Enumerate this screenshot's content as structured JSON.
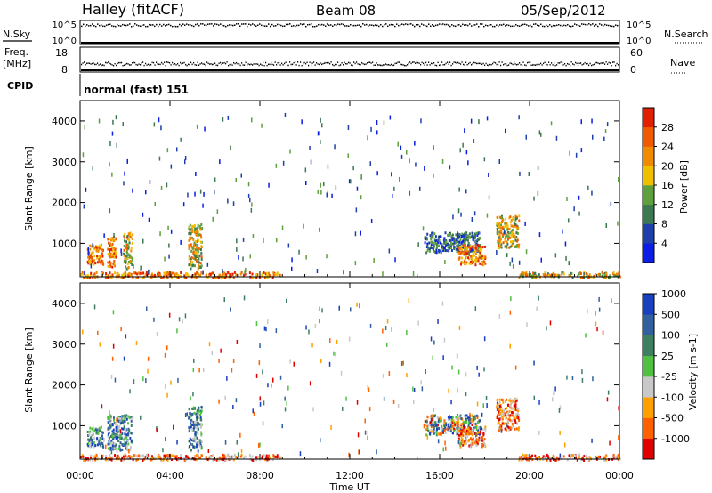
{
  "header": {
    "site": "Halley (fitACF)",
    "beam": "Beam 08",
    "date": "05/Sep/2012"
  },
  "sky_panel": {
    "left_label": "N.Sky",
    "right_label": "N.Search",
    "ticks": [
      "10^5",
      "10^0"
    ]
  },
  "freq_panel": {
    "left_label_line1": "Freq.",
    "left_label_line2": "[MHz]",
    "right_label": "Nave",
    "left_ticks": [
      "18",
      "8"
    ],
    "right_ticks": [
      "60",
      "0"
    ]
  },
  "cpid": {
    "label": "CPID",
    "value": "normal (fast) 151"
  },
  "colors": {
    "power": [
      "#0a1ee6",
      "#1e40aa",
      "#3c7850",
      "#5ea03c",
      "#f0c000",
      "#f08a00",
      "#f05a00",
      "#e02000"
    ],
    "velocity": [
      "#e00000",
      "#ff6000",
      "#ffa000",
      "#c8c8c8",
      "#50c040",
      "#3c8060",
      "#3060a0",
      "#1840c0"
    ]
  },
  "chart_data": [
    {
      "type": "heatmap",
      "title": "",
      "xlabel": "",
      "ylabel": "Slant Range [km]",
      "xlim": [
        0,
        24
      ],
      "ylim": [
        180,
        4500
      ],
      "x_ticks": [
        "00:00",
        "04:00",
        "08:00",
        "12:00",
        "16:00",
        "20:00",
        "00:00"
      ],
      "y_ticks": [
        1000,
        2000,
        3000,
        4000
      ],
      "colorbar": {
        "label": "Power [dB]",
        "ticks": [
          "4",
          "8",
          "12",
          "16",
          "20",
          "24",
          "28"
        ],
        "range": [
          0,
          32
        ]
      },
      "echo_regions": [
        {
          "t_start": 0.0,
          "t_end": 8.9,
          "r_min": 180,
          "r_max": 320,
          "level": "high"
        },
        {
          "t_start": 0.3,
          "t_end": 1.0,
          "r_min": 500,
          "r_max": 1000,
          "level": "high"
        },
        {
          "t_start": 1.2,
          "t_end": 1.6,
          "r_min": 400,
          "r_max": 1200,
          "level": "high"
        },
        {
          "t_start": 1.9,
          "t_end": 2.3,
          "r_min": 400,
          "r_max": 1300,
          "level": "mid"
        },
        {
          "t_start": 4.8,
          "t_end": 5.4,
          "r_min": 400,
          "r_max": 1500,
          "level": "mid"
        },
        {
          "t_start": 15.3,
          "t_end": 17.8,
          "r_min": 800,
          "r_max": 1300,
          "level": "low"
        },
        {
          "t_start": 16.8,
          "t_end": 18.0,
          "r_min": 500,
          "r_max": 1000,
          "level": "high"
        },
        {
          "t_start": 18.5,
          "t_end": 19.5,
          "r_min": 900,
          "r_max": 1700,
          "level": "mid"
        },
        {
          "t_start": 19.5,
          "t_end": 24.0,
          "r_min": 180,
          "r_max": 320,
          "level": "mid"
        }
      ]
    },
    {
      "type": "heatmap",
      "title": "",
      "xlabel": "Time UT",
      "ylabel": "Slant Range [km]",
      "xlim": [
        0,
        24
      ],
      "ylim": [
        180,
        4500
      ],
      "x_ticks": [
        "00:00",
        "04:00",
        "08:00",
        "12:00",
        "16:00",
        "20:00",
        "00:00"
      ],
      "y_ticks": [
        1000,
        2000,
        3000,
        4000
      ],
      "colorbar": {
        "label": "Velocity [m s-1]",
        "ticks": [
          "-1000",
          "-500",
          "-100",
          "-25",
          "25",
          "100",
          "500",
          "1000"
        ],
        "range": [
          -1500,
          1500
        ]
      },
      "echo_regions": [
        {
          "t_start": 0.0,
          "t_end": 8.9,
          "r_min": 180,
          "r_max": 320,
          "level": "toward"
        },
        {
          "t_start": 0.3,
          "t_end": 1.0,
          "r_min": 500,
          "r_max": 1000,
          "level": "away"
        },
        {
          "t_start": 1.2,
          "t_end": 2.3,
          "r_min": 400,
          "r_max": 1300,
          "level": "away"
        },
        {
          "t_start": 4.8,
          "t_end": 5.4,
          "r_min": 400,
          "r_max": 1500,
          "level": "away"
        },
        {
          "t_start": 15.3,
          "t_end": 17.8,
          "r_min": 800,
          "r_max": 1300,
          "level": "mixed"
        },
        {
          "t_start": 16.8,
          "t_end": 18.0,
          "r_min": 500,
          "r_max": 1000,
          "level": "toward"
        },
        {
          "t_start": 18.5,
          "t_end": 19.5,
          "r_min": 900,
          "r_max": 1700,
          "level": "toward"
        },
        {
          "t_start": 19.5,
          "t_end": 24.0,
          "r_min": 180,
          "r_max": 320,
          "level": "toward"
        }
      ]
    }
  ]
}
